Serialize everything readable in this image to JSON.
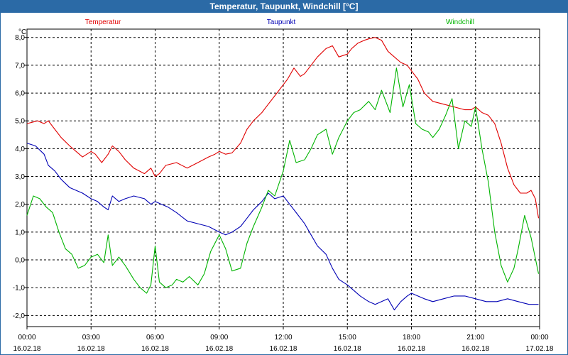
{
  "window": {
    "title": "Temperatur, Taupunkt, Windchill [°C]"
  },
  "chart_data": {
    "type": "line",
    "title": "Temperatur, Taupunkt, Windchill [°C]",
    "ylabel": "°C",
    "ylim": [
      -2.4,
      8.3
    ],
    "xlim": [
      0,
      24
    ],
    "grid": true,
    "yticks": [
      {
        "value": 8,
        "label": "8,0"
      },
      {
        "value": 7,
        "label": "7,0"
      },
      {
        "value": 6,
        "label": "6,0"
      },
      {
        "value": 5,
        "label": "5,0"
      },
      {
        "value": 4,
        "label": "4,0"
      },
      {
        "value": 3,
        "label": "3,0"
      },
      {
        "value": 2,
        "label": "2,0"
      },
      {
        "value": 1,
        "label": "1,0"
      },
      {
        "value": 0,
        "label": "0,0"
      },
      {
        "value": -1,
        "label": "-1,0"
      },
      {
        "value": -2,
        "label": "-2,0"
      }
    ],
    "xticks": [
      {
        "value": 0,
        "time": "00:00",
        "date": "16.02.18"
      },
      {
        "value": 3,
        "time": "03:00",
        "date": "16.02.18"
      },
      {
        "value": 6,
        "time": "06:00",
        "date": "16.02.18"
      },
      {
        "value": 9,
        "time": "09:00",
        "date": "16.02.18"
      },
      {
        "value": 12,
        "time": "12:00",
        "date": "16.02.18"
      },
      {
        "value": 15,
        "time": "15:00",
        "date": "16.02.18"
      },
      {
        "value": 18,
        "time": "18:00",
        "date": "16.02.18"
      },
      {
        "value": 21,
        "time": "21:00",
        "date": "16.02.18"
      },
      {
        "value": 24,
        "time": "00:00",
        "date": "17.02.18"
      }
    ],
    "series": [
      {
        "name": "Temperatur",
        "color": "#e00000",
        "x": [
          0,
          0.5,
          0.8,
          1.0,
          1.3,
          1.6,
          2.0,
          2.3,
          2.6,
          3.0,
          3.2,
          3.5,
          3.8,
          4.0,
          4.3,
          4.6,
          5.0,
          5.5,
          5.8,
          6.0,
          6.2,
          6.5,
          7.0,
          7.5,
          8.0,
          8.5,
          8.8,
          9.0,
          9.3,
          9.6,
          10.0,
          10.3,
          10.6,
          11.0,
          11.3,
          11.6,
          12.0,
          12.2,
          12.5,
          12.8,
          13.0,
          13.3,
          13.6,
          14.0,
          14.3,
          14.6,
          15.0,
          15.2,
          15.5,
          15.8,
          16.0,
          16.3,
          16.6,
          16.9,
          17.2,
          17.5,
          17.8,
          18.0,
          18.3,
          18.6,
          19.0,
          19.5,
          20.0,
          20.5,
          20.8,
          21.0,
          21.3,
          21.6,
          21.9,
          22.2,
          22.5,
          22.8,
          23.1,
          23.4,
          23.6,
          23.8,
          23.95
        ],
        "values": [
          4.9,
          5.0,
          4.9,
          5.0,
          4.7,
          4.4,
          4.1,
          3.9,
          3.7,
          3.9,
          3.8,
          3.5,
          3.8,
          4.1,
          3.9,
          3.6,
          3.3,
          3.1,
          3.3,
          3.0,
          3.1,
          3.4,
          3.5,
          3.3,
          3.5,
          3.7,
          3.8,
          3.9,
          3.8,
          3.85,
          4.2,
          4.7,
          5.0,
          5.3,
          5.6,
          5.9,
          6.3,
          6.5,
          6.9,
          6.6,
          6.7,
          7.0,
          7.3,
          7.6,
          7.7,
          7.3,
          7.4,
          7.6,
          7.8,
          7.9,
          7.95,
          8.0,
          7.9,
          7.5,
          7.3,
          7.1,
          7.0,
          6.8,
          6.5,
          6.0,
          5.7,
          5.6,
          5.5,
          5.4,
          5.4,
          5.5,
          5.3,
          5.2,
          4.9,
          4.2,
          3.3,
          2.7,
          2.4,
          2.4,
          2.5,
          2.2,
          1.5
        ]
      },
      {
        "name": "Taupunkt",
        "color": "#0000b4",
        "x": [
          0,
          0.4,
          0.8,
          1.0,
          1.3,
          1.6,
          2.0,
          2.3,
          2.6,
          3.0,
          3.3,
          3.6,
          3.8,
          4.0,
          4.3,
          4.6,
          5.0,
          5.5,
          5.8,
          6.0,
          6.3,
          6.6,
          7.0,
          7.5,
          8.0,
          8.5,
          9.0,
          9.3,
          9.6,
          10.0,
          10.3,
          10.6,
          11.0,
          11.3,
          11.6,
          12.0,
          12.3,
          12.6,
          13.0,
          13.3,
          13.6,
          14.0,
          14.3,
          14.6,
          15.0,
          15.3,
          15.6,
          16.0,
          16.3,
          16.6,
          16.9,
          17.2,
          17.5,
          17.8,
          18.0,
          18.3,
          18.6,
          19.0,
          19.5,
          20.0,
          20.5,
          21.0,
          21.5,
          22.0,
          22.5,
          23.0,
          23.5,
          23.8,
          23.95
        ],
        "values": [
          4.2,
          4.1,
          3.8,
          3.4,
          3.2,
          2.9,
          2.6,
          2.5,
          2.4,
          2.2,
          2.1,
          1.9,
          1.8,
          2.3,
          2.1,
          2.2,
          2.3,
          2.2,
          2.0,
          2.1,
          2.0,
          1.9,
          1.7,
          1.4,
          1.3,
          1.2,
          1.0,
          0.9,
          1.0,
          1.2,
          1.5,
          1.8,
          2.1,
          2.4,
          2.2,
          2.3,
          2.0,
          1.7,
          1.3,
          0.9,
          0.5,
          0.2,
          -0.3,
          -0.7,
          -0.9,
          -1.1,
          -1.3,
          -1.5,
          -1.6,
          -1.5,
          -1.4,
          -1.8,
          -1.5,
          -1.3,
          -1.2,
          -1.3,
          -1.4,
          -1.5,
          -1.4,
          -1.3,
          -1.3,
          -1.4,
          -1.5,
          -1.5,
          -1.4,
          -1.5,
          -1.6,
          -1.6,
          -1.6
        ]
      },
      {
        "name": "Windchill",
        "color": "#00b400",
        "x": [
          0,
          0.3,
          0.6,
          0.9,
          1.2,
          1.5,
          1.8,
          2.1,
          2.4,
          2.7,
          3.0,
          3.3,
          3.6,
          3.8,
          4.0,
          4.3,
          4.6,
          5.0,
          5.3,
          5.6,
          5.8,
          6.0,
          6.2,
          6.5,
          6.8,
          7.0,
          7.3,
          7.6,
          8.0,
          8.3,
          8.6,
          9.0,
          9.3,
          9.6,
          10.0,
          10.3,
          10.6,
          11.0,
          11.3,
          11.6,
          12.0,
          12.3,
          12.6,
          13.0,
          13.3,
          13.6,
          14.0,
          14.3,
          14.6,
          15.0,
          15.3,
          15.6,
          16.0,
          16.3,
          16.6,
          17.0,
          17.3,
          17.6,
          17.9,
          18.2,
          18.5,
          18.8,
          19.0,
          19.3,
          19.6,
          19.9,
          20.2,
          20.5,
          20.8,
          21.0,
          21.3,
          21.6,
          21.9,
          22.2,
          22.5,
          22.8,
          23.0,
          23.3,
          23.6,
          23.95
        ],
        "values": [
          1.6,
          2.3,
          2.2,
          1.9,
          1.7,
          1.0,
          0.4,
          0.2,
          -0.3,
          -0.2,
          0.1,
          0.2,
          -0.1,
          0.9,
          -0.2,
          0.1,
          -0.2,
          -0.7,
          -1.0,
          -1.2,
          -0.9,
          0.5,
          -0.8,
          -1.0,
          -0.9,
          -0.7,
          -0.8,
          -0.6,
          -0.9,
          -0.5,
          0.3,
          0.9,
          0.4,
          -0.4,
          -0.3,
          0.6,
          1.2,
          1.9,
          2.5,
          2.3,
          3.2,
          4.3,
          3.5,
          3.6,
          4.0,
          4.5,
          4.7,
          3.8,
          4.4,
          5.0,
          5.3,
          5.4,
          5.7,
          5.4,
          6.1,
          5.3,
          6.9,
          5.5,
          6.3,
          4.9,
          4.7,
          4.6,
          4.4,
          4.7,
          5.2,
          5.8,
          4.0,
          5.0,
          4.8,
          5.5,
          4.0,
          2.8,
          1.0,
          -0.2,
          -0.8,
          -0.3,
          0.4,
          1.6,
          0.8,
          -0.5
        ]
      }
    ]
  }
}
